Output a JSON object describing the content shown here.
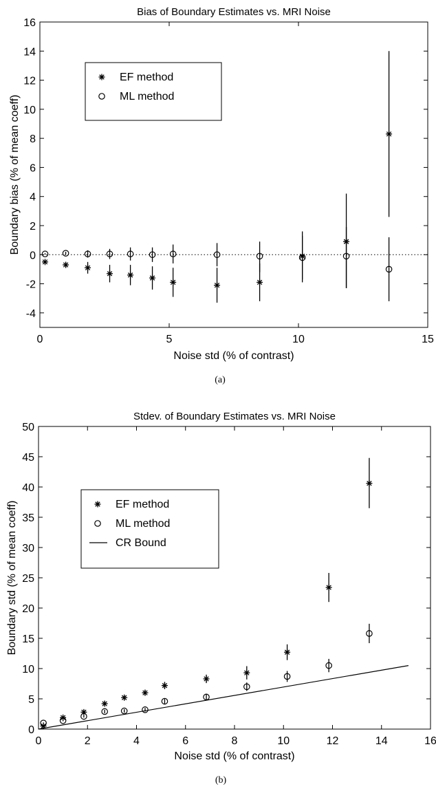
{
  "chart_data": [
    {
      "id": "a",
      "type": "scatter",
      "title": "Bias of Boundary Estimates vs. MRI Noise",
      "xlabel": "Noise std (% of contrast)",
      "ylabel": "Boundary bias (% of mean coeff)",
      "caption": "(a)",
      "xlim": [
        0,
        15
      ],
      "ylim": [
        -5,
        16
      ],
      "xticks": [
        0,
        5,
        10,
        15
      ],
      "yticks": [
        -4,
        -2,
        0,
        2,
        4,
        6,
        8,
        10,
        12,
        14,
        16
      ],
      "grid": false,
      "reference_line": {
        "y": 0,
        "style": "dotted"
      },
      "legend": {
        "placement": "upper-left",
        "entries": [
          {
            "name": "EF method",
            "marker": "asterisk"
          },
          {
            "name": "ML method",
            "marker": "circle"
          }
        ]
      },
      "series": [
        {
          "name": "EF method",
          "marker": "asterisk",
          "x": [
            0.2,
            1.0,
            1.85,
            2.7,
            3.5,
            4.35,
            5.15,
            6.85,
            8.5,
            10.15,
            11.85,
            13.5
          ],
          "y": [
            -0.5,
            -0.7,
            -0.9,
            -1.3,
            -1.4,
            -1.6,
            -1.9,
            -2.1,
            -1.9,
            -0.1,
            0.9,
            8.3
          ],
          "err_low": [
            -0.6,
            -0.9,
            -1.3,
            -1.9,
            -2.1,
            -2.4,
            -2.9,
            -3.3,
            -3.2,
            -1.9,
            -2.3,
            2.6
          ],
          "err_high": [
            -0.4,
            -0.5,
            -0.5,
            -0.7,
            -0.7,
            -0.8,
            -0.9,
            -0.9,
            -0.6,
            1.6,
            4.2,
            14.0
          ]
        },
        {
          "name": "ML method",
          "marker": "circle",
          "x": [
            0.2,
            1.0,
            1.85,
            2.7,
            3.5,
            4.35,
            5.15,
            6.85,
            8.5,
            10.15,
            11.85,
            13.5
          ],
          "y": [
            0.05,
            0.1,
            0.05,
            0.05,
            0.05,
            0.0,
            0.05,
            0.0,
            -0.1,
            -0.2,
            -0.1,
            -1.0
          ],
          "err_low": [
            0.0,
            0.0,
            -0.2,
            -0.3,
            -0.4,
            -0.5,
            -0.6,
            -0.8,
            -1.2,
            -1.7,
            -2.3,
            -3.2
          ],
          "err_high": [
            0.1,
            0.2,
            0.3,
            0.4,
            0.5,
            0.5,
            0.7,
            0.8,
            0.9,
            1.3,
            1.9,
            1.2
          ]
        }
      ]
    },
    {
      "id": "b",
      "type": "scatter",
      "title": "Stdev. of Boundary Estimates vs. MRI Noise",
      "xlabel": "Noise std (% of contrast)",
      "ylabel": "Boundary std (% of mean coeff)",
      "caption": "(b)",
      "xlim": [
        0,
        16
      ],
      "ylim": [
        0,
        50
      ],
      "xticks": [
        0,
        2,
        4,
        6,
        8,
        10,
        12,
        14,
        16
      ],
      "yticks": [
        0,
        5,
        10,
        15,
        20,
        25,
        30,
        35,
        40,
        45,
        50
      ],
      "grid": false,
      "legend": {
        "placement": "upper-left",
        "entries": [
          {
            "name": "EF method",
            "marker": "asterisk"
          },
          {
            "name": "ML method",
            "marker": "circle"
          },
          {
            "name": "CR Bound",
            "marker": "line"
          }
        ]
      },
      "series": [
        {
          "name": "EF method",
          "marker": "asterisk",
          "x": [
            0.2,
            1.0,
            1.85,
            2.7,
            3.5,
            4.35,
            5.15,
            6.85,
            8.5,
            10.15,
            11.85,
            13.5
          ],
          "y": [
            0.5,
            1.9,
            2.8,
            4.2,
            5.2,
            6.0,
            7.2,
            8.3,
            9.3,
            12.7,
            23.4,
            40.6
          ],
          "err_low": [
            0.4,
            1.7,
            2.5,
            3.9,
            4.8,
            5.6,
            6.6,
            7.6,
            8.2,
            11.4,
            21.0,
            36.5
          ],
          "err_high": [
            0.6,
            2.1,
            3.1,
            4.6,
            5.6,
            6.5,
            7.8,
            9.0,
            10.4,
            14.0,
            25.8,
            44.8
          ]
        },
        {
          "name": "ML method",
          "marker": "circle",
          "x": [
            0.2,
            1.0,
            1.85,
            2.7,
            3.5,
            4.35,
            5.15,
            6.85,
            8.5,
            10.15,
            11.85,
            13.5
          ],
          "y": [
            1.0,
            1.4,
            2.1,
            2.9,
            3.0,
            3.2,
            4.6,
            5.3,
            7.0,
            8.7,
            10.5,
            15.8
          ],
          "err_low": [
            0.9,
            1.3,
            1.9,
            2.6,
            2.7,
            2.9,
            4.2,
            4.8,
            6.3,
            7.8,
            9.4,
            14.2
          ],
          "err_high": [
            1.1,
            1.5,
            2.3,
            3.2,
            3.3,
            3.5,
            5.0,
            5.8,
            7.7,
            9.6,
            11.6,
            17.4
          ]
        },
        {
          "name": "CR Bound",
          "marker": "line",
          "x": [
            0,
            15.1
          ],
          "y": [
            0,
            10.5
          ]
        }
      ]
    }
  ]
}
